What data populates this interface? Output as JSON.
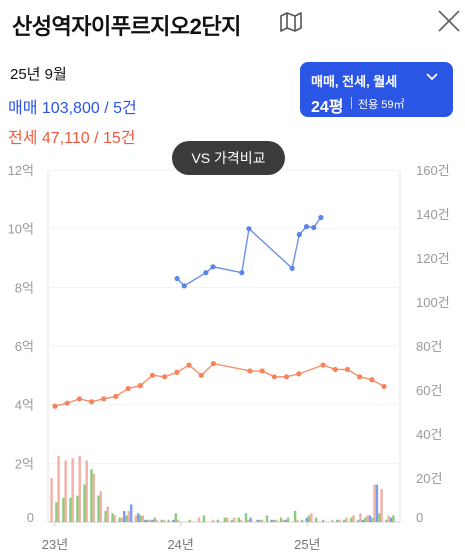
{
  "header": {
    "title": "산성역자이푸르지오2단지",
    "map_icon": "map-icon",
    "close_icon": "close-icon"
  },
  "summary": {
    "date": "25년 9월",
    "sale_label": "매매",
    "sale_value": "103,800 / 5건",
    "jeonse_label": "전세",
    "jeonse_value": "47,110 / 15건"
  },
  "filter": {
    "types": "매매, 전세, 월세",
    "pyeong": "24평",
    "area": "전용 59㎡"
  },
  "compare_button": "VS 가격비교",
  "colors": {
    "sale": "#5b85e8",
    "jeonse": "#f7835b",
    "accent": "#2a55e5",
    "vol_sale": "#6f94ee",
    "vol_jeonse": "#f2a79a",
    "vol_monthly": "#7cc96b"
  },
  "chart_data": {
    "type": "line",
    "x_labels": [
      "23년",
      "24년",
      "25년"
    ],
    "y_left_labels": [
      "0",
      "2억",
      "4억",
      "6억",
      "8억",
      "10억",
      "12억"
    ],
    "y_right_labels": [
      "0",
      "20건",
      "40건",
      "60건",
      "80건",
      "100건",
      "120건",
      "140건",
      "160건"
    ],
    "y_left_range": [
      0,
      12
    ],
    "y_right_range": [
      0,
      160
    ],
    "x_range": [
      0,
      34
    ],
    "series": [
      {
        "name": "매매",
        "unit": "억",
        "points": [
          [
            15,
            8.3
          ],
          [
            16,
            8.05
          ],
          [
            19,
            8.5
          ],
          [
            20,
            8.7
          ],
          [
            24,
            8.5
          ],
          [
            25,
            10.0
          ],
          [
            31,
            8.65
          ],
          [
            32,
            9.8
          ],
          [
            33,
            10.07
          ],
          [
            34,
            10.04
          ],
          [
            35,
            10.38
          ]
        ]
      },
      {
        "name": "전세",
        "unit": "억",
        "points": [
          [
            0,
            3.95
          ],
          [
            1,
            4.05
          ],
          [
            2,
            4.2
          ],
          [
            3,
            4.1
          ],
          [
            4,
            4.2
          ],
          [
            5,
            4.28
          ],
          [
            6,
            4.55
          ],
          [
            7,
            4.65
          ],
          [
            8,
            5.0
          ],
          [
            9,
            4.95
          ],
          [
            10,
            5.1
          ],
          [
            11,
            5.35
          ],
          [
            12,
            5.0
          ],
          [
            13,
            5.4
          ],
          [
            16,
            5.15
          ],
          [
            17,
            5.15
          ],
          [
            18,
            4.95
          ],
          [
            19,
            4.95
          ],
          [
            20,
            5.05
          ],
          [
            22,
            5.35
          ],
          [
            23,
            5.2
          ],
          [
            24,
            5.2
          ],
          [
            25,
            4.95
          ],
          [
            26,
            4.85
          ],
          [
            27,
            4.62
          ]
        ]
      }
    ],
    "volume_bars": {
      "unit": "건",
      "sale": [
        0,
        0,
        0,
        0,
        0,
        0,
        0,
        0,
        0,
        0,
        5,
        8,
        4,
        1,
        1,
        0,
        0,
        1,
        0,
        0,
        0,
        0,
        0,
        0,
        0,
        0,
        0,
        0,
        2,
        1,
        0,
        1,
        0,
        1,
        0,
        0,
        2,
        0,
        0,
        0,
        0,
        0,
        0,
        0,
        1,
        3,
        17,
        0,
        2
      ],
      "jeonse": [
        20,
        30,
        28,
        29,
        30,
        28,
        22,
        14,
        7,
        3,
        2,
        5,
        3,
        3,
        1,
        1,
        1,
        0,
        1,
        0,
        0,
        2,
        0,
        1,
        0,
        2,
        2,
        1,
        1,
        0,
        1,
        0,
        1,
        1,
        0,
        1,
        0,
        4,
        0,
        0,
        1,
        1,
        2,
        3,
        4,
        3,
        17,
        15,
        3
      ],
      "monthly": [
        9,
        11,
        11,
        12,
        17,
        24,
        12,
        5,
        4,
        2,
        3,
        0,
        3,
        1,
        2,
        1,
        1,
        4,
        0,
        1,
        0,
        3,
        0,
        1,
        2,
        1,
        2,
        4,
        0,
        1,
        3,
        1,
        2,
        2,
        5,
        1,
        3,
        2,
        1,
        0,
        1,
        1,
        2,
        1,
        2,
        2,
        4,
        1,
        3
      ]
    }
  }
}
